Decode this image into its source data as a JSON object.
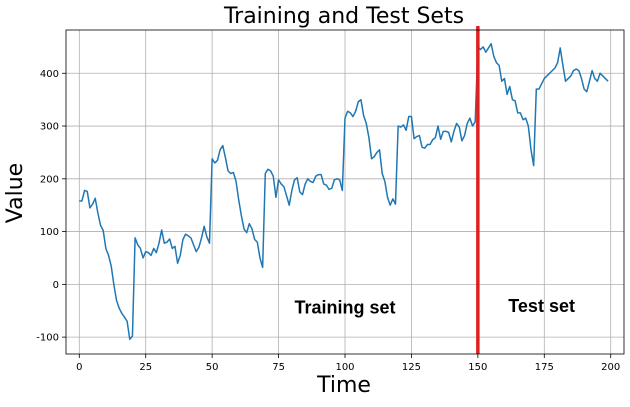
{
  "chart_data": {
    "type": "line",
    "title": "Training and Test Sets",
    "xlabel": "Time",
    "ylabel": "Value",
    "xlim": [
      -5,
      205
    ],
    "ylim": [
      -132,
      482
    ],
    "grid": true,
    "x_ticks": [
      0,
      25,
      50,
      75,
      100,
      125,
      150,
      175,
      200
    ],
    "y_ticks": [
      -100,
      0,
      100,
      200,
      300,
      400
    ],
    "line_color": "#1f77b4",
    "split": {
      "x": 150,
      "color": "#e02020"
    },
    "annotations": [
      {
        "text": "Training set",
        "x": 100,
        "y": -55
      },
      {
        "text": "Test set",
        "x": 174,
        "y": -52
      }
    ],
    "series": [
      {
        "x": [
          0,
          1,
          2,
          3,
          4,
          5,
          6,
          7,
          8,
          9,
          10,
          11,
          12,
          13,
          14,
          15,
          16,
          17,
          18,
          19,
          20,
          21,
          22,
          23,
          24,
          25,
          26,
          27,
          28,
          29,
          30,
          31,
          32,
          33,
          34,
          35,
          36,
          37,
          38,
          39,
          40,
          41,
          42,
          43,
          44,
          45,
          46,
          47,
          48,
          49,
          50,
          51,
          52,
          53,
          54,
          55,
          56,
          57,
          58,
          59,
          60,
          61,
          62,
          63,
          64,
          65,
          66,
          67,
          68,
          69,
          70,
          71,
          72,
          73,
          74,
          75,
          76,
          77,
          78,
          79,
          80,
          81,
          82,
          83,
          84,
          85,
          86,
          87,
          88,
          89,
          90,
          91,
          92,
          93,
          94,
          95,
          96,
          97,
          98,
          99,
          100,
          101,
          102,
          103,
          104,
          105,
          106,
          107,
          108,
          109,
          110,
          111,
          112,
          113,
          114,
          115,
          116,
          117,
          118,
          119,
          120,
          121,
          122,
          123,
          124,
          125,
          126,
          127,
          128,
          129,
          130,
          131,
          132,
          133,
          134,
          135,
          136,
          137,
          138,
          139,
          140,
          141,
          142,
          143,
          144,
          145,
          146,
          147,
          148,
          149,
          150,
          151,
          152,
          153,
          154,
          155,
          156,
          157,
          158,
          159,
          160,
          161,
          162,
          163,
          164,
          165,
          166,
          167,
          168,
          169,
          170,
          171,
          172,
          173,
          174,
          175,
          176,
          177,
          178,
          179,
          180,
          181,
          182,
          183,
          184,
          185,
          186,
          187,
          188,
          189,
          190,
          191,
          192,
          193,
          194,
          195,
          196,
          197,
          198,
          199
        ],
        "values": [
          158,
          158,
          178,
          176,
          145,
          152,
          163,
          135,
          112,
          102,
          68,
          55,
          35,
          0,
          -30,
          -45,
          -55,
          -62,
          -70,
          -104,
          -98,
          88,
          75,
          68,
          50,
          62,
          60,
          55,
          68,
          60,
          78,
          103,
          78,
          80,
          86,
          68,
          72,
          40,
          55,
          85,
          95,
          92,
          88,
          75,
          62,
          70,
          88,
          110,
          90,
          78,
          238,
          230,
          235,
          255,
          263,
          240,
          215,
          210,
          212,
          195,
          160,
          130,
          105,
          98,
          115,
          105,
          85,
          80,
          50,
          32,
          210,
          218,
          215,
          205,
          165,
          198,
          190,
          185,
          168,
          150,
          178,
          198,
          202,
          175,
          170,
          190,
          200,
          195,
          193,
          205,
          208,
          208,
          190,
          188,
          180,
          182,
          198,
          200,
          198,
          178,
          315,
          328,
          325,
          318,
          328,
          346,
          350,
          320,
          305,
          278,
          238,
          242,
          250,
          255,
          210,
          195,
          165,
          150,
          162,
          152,
          300,
          298,
          302,
          292,
          318,
          318,
          276,
          280,
          282,
          260,
          258,
          265,
          265,
          274,
          278,
          300,
          275,
          290,
          290,
          288,
          270,
          290,
          305,
          298,
          272,
          282,
          305,
          315,
          300,
          308,
          450,
          445,
          450,
          440,
          448,
          456,
          432,
          420,
          415,
          385,
          390,
          360,
          375,
          350,
          348,
          325,
          325,
          312,
          315,
          300,
          255,
          225,
          370,
          370,
          380,
          390,
          395,
          400,
          405,
          410,
          420,
          448,
          415,
          385,
          390,
          395,
          405,
          408,
          405,
          390,
          370,
          365,
          385,
          405,
          390,
          385,
          400,
          395,
          390,
          385
        ]
      }
    ]
  }
}
